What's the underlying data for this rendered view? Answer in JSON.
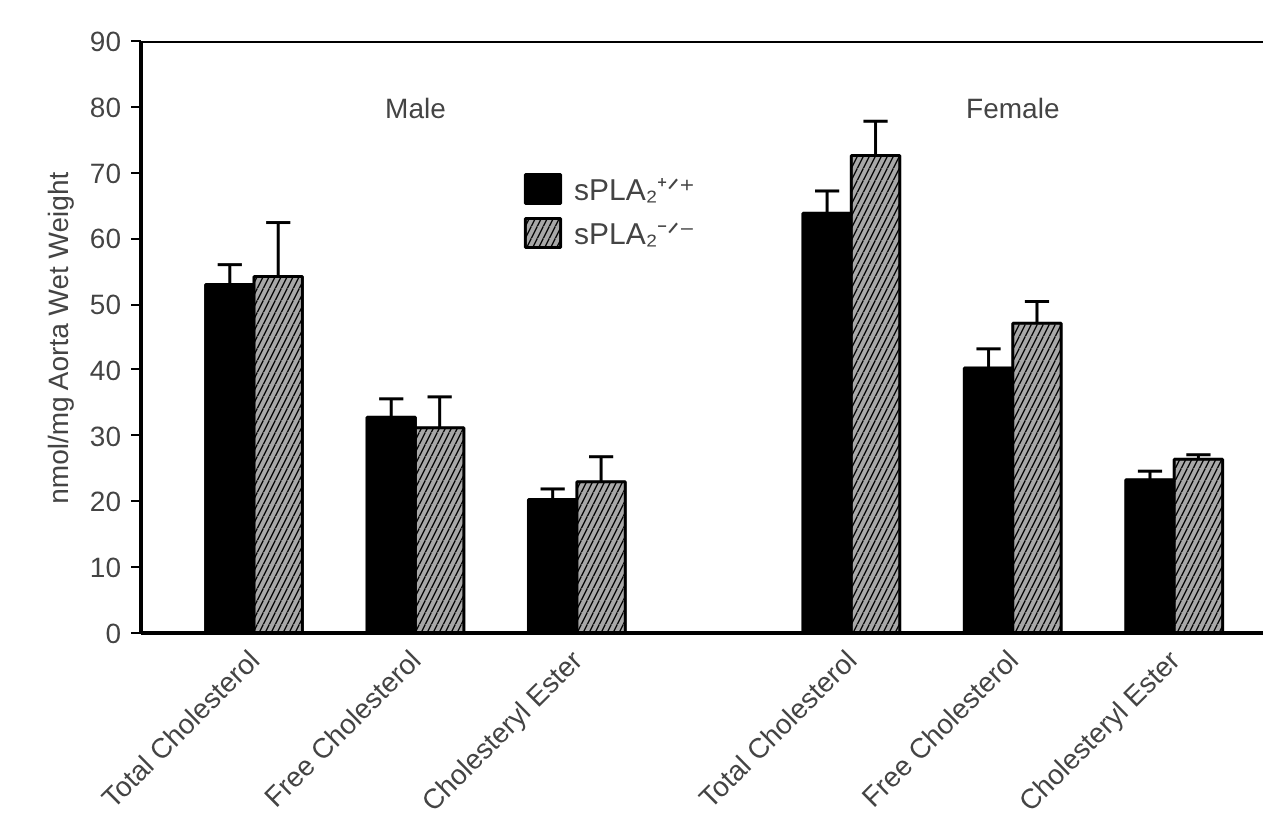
{
  "chart_data": {
    "type": "bar",
    "ylabel": "nmol/mg Aorta Wet Weight",
    "categories": [
      "Total Cholesterol",
      "Free Cholesterol",
      "Cholesteryl Ester",
      "Total Cholesterol",
      "Free Cholesterol",
      "Cholesteryl Ester"
    ],
    "series": [
      {
        "name": "sPLA₂⁺ᐟ⁺",
        "color": "#000000",
        "values": [
          53,
          32.8,
          20.3,
          63.8,
          40.3,
          23.3
        ],
        "errors": [
          [
            53,
            56
          ],
          [
            32.8,
            35.6
          ],
          [
            20.3,
            21.9
          ],
          [
            63.8,
            67.2
          ],
          [
            40.3,
            43.2
          ],
          [
            23.3,
            24.6
          ]
        ]
      },
      {
        "name": "sPLA₂⁻ᐟ⁻",
        "color": "#a8a8a8",
        "values": [
          54.2,
          31.2,
          23,
          72.6,
          47.1,
          26.4
        ],
        "errors": [
          [
            54.2,
            62.4
          ],
          [
            31.2,
            35.9
          ],
          [
            23,
            26.8
          ],
          [
            72.6,
            77.8
          ],
          [
            47.1,
            50.4
          ],
          [
            26.4,
            27.1
          ]
        ]
      }
    ],
    "annotations": [
      "Male",
      "Female"
    ],
    "ylim": [
      0,
      90
    ],
    "yticks": [
      0,
      10,
      20,
      30,
      40,
      50,
      60,
      70,
      80,
      90
    ],
    "grid": false,
    "legend": "top"
  }
}
